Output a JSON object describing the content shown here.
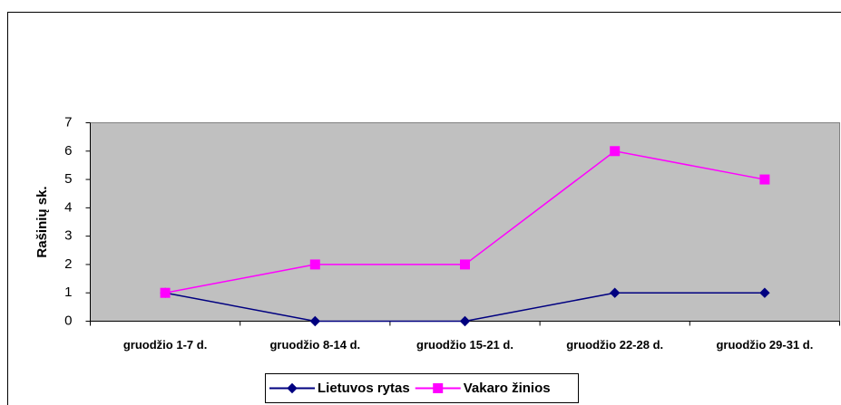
{
  "chart_data": {
    "type": "line",
    "ylabel": "Rašinių sk.",
    "categories": [
      "gruodžio 1-7 d.",
      "gruodžio 8-14 d.",
      "gruodžio 15-21 d.",
      "gruodžio 22-28 d.",
      "gruodžio 29-31 d."
    ],
    "series": [
      {
        "name": "Lietuvos rytas",
        "color": "#000080",
        "marker": "diamond",
        "values": [
          1,
          0,
          0,
          1,
          1
        ]
      },
      {
        "name": "Vakaro žinios",
        "color": "#ff00ff",
        "marker": "square",
        "values": [
          1,
          2,
          2,
          6,
          5
        ]
      }
    ],
    "ylim": [
      0,
      7
    ],
    "yticks": [
      0,
      1,
      2,
      3,
      4,
      5,
      6,
      7
    ],
    "grid": false,
    "legend": "bottom"
  }
}
